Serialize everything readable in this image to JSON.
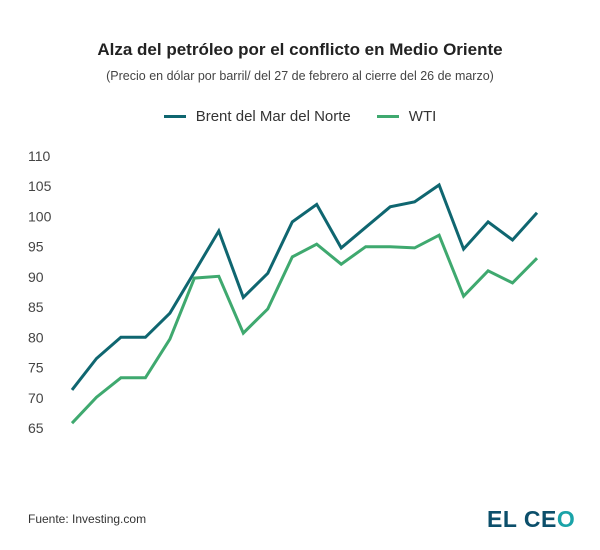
{
  "chart_data": {
    "type": "line",
    "title": "Alza del petróleo por el conflicto en Medio Oriente",
    "subtitle": "(Precio en dólar por barril/ del 27 de febrero al cierre del 26 de marzo)",
    "xlabel": "",
    "ylabel": "",
    "ylim": [
      65,
      110
    ],
    "yticks": [
      "110",
      "105",
      "100",
      "95",
      "90",
      "85",
      "80",
      "75",
      "70",
      "65"
    ],
    "grid": false,
    "legend": "top",
    "series": [
      {
        "name": "Brent del Mar del Norte",
        "color": "#0f6670",
        "values": [
          71.3,
          76.5,
          80.0,
          80.0,
          84.0,
          90.8,
          97.6,
          86.6,
          90.6,
          99.1,
          102.0,
          94.8,
          98.2,
          101.6,
          102.4,
          105.2,
          94.6,
          99.1,
          96.1,
          100.6
        ]
      },
      {
        "name": "WTI",
        "color": "#3fa96f",
        "values": [
          65.8,
          70.1,
          73.3,
          73.3,
          79.7,
          89.8,
          90.1,
          80.7,
          84.7,
          93.3,
          95.4,
          92.1,
          95.0,
          95.0,
          94.8,
          96.9,
          86.8,
          91.0,
          89.0,
          93.1
        ]
      }
    ]
  },
  "footer": {
    "source": "Fuente: Investing.com",
    "logo": "EL CEO"
  }
}
